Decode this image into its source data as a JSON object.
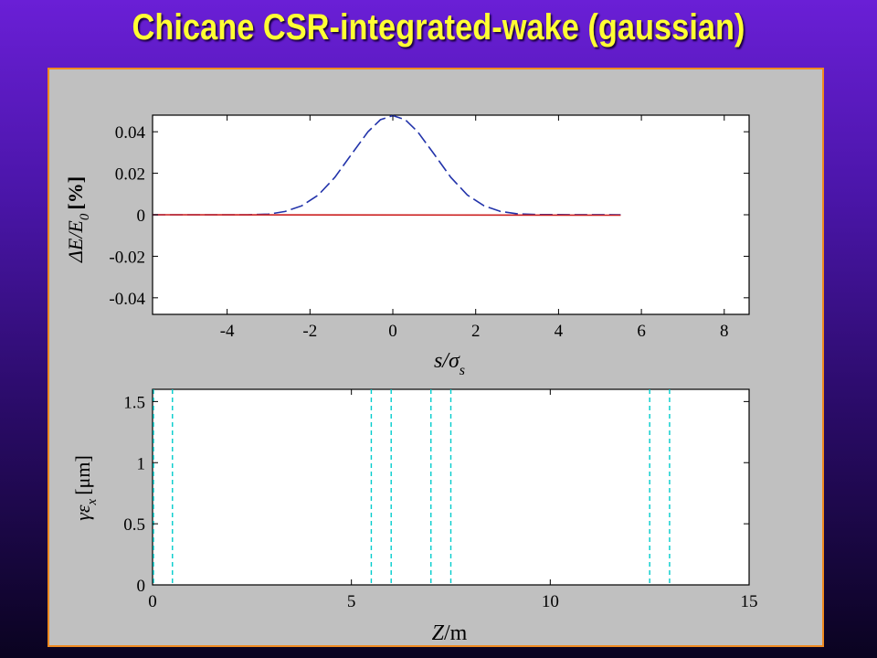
{
  "title": "Chicane CSR-integrated-wake (gaussian)",
  "chart_data": [
    {
      "type": "line",
      "xlabel_main": "s/σ",
      "xlabel_sub": "s",
      "ylabel": "ΔE/E",
      "ylabel_sub": "0",
      "ylabel_unit": "[%]",
      "xlim": [
        -5.8,
        8.6
      ],
      "ylim": [
        -0.048,
        0.048
      ],
      "xticks": [
        -4,
        -2,
        0,
        2,
        4,
        6,
        8
      ],
      "yticks": [
        0.04,
        0.02,
        0,
        -0.02,
        -0.04
      ],
      "ytick_labels": [
        "0.04",
        "0.02",
        "0",
        "-0.02",
        "-0.04"
      ],
      "series": [
        {
          "color": "#2233aa",
          "style": "dashed",
          "x": [
            -5.8,
            -3.5,
            -3.0,
            -2.6,
            -2.2,
            -1.8,
            -1.4,
            -1.0,
            -0.6,
            -0.3,
            0.0,
            0.3,
            0.6,
            1.0,
            1.4,
            1.8,
            2.2,
            2.6,
            3.0,
            3.5,
            5.5
          ],
          "y": [
            0.0,
            0.0,
            0.0003,
            0.0016,
            0.0043,
            0.0095,
            0.018,
            0.0291,
            0.04,
            0.0458,
            0.0478,
            0.0458,
            0.04,
            0.0291,
            0.018,
            0.0095,
            0.0043,
            0.0016,
            0.0005,
            0.0001,
            0.0
          ]
        },
        {
          "color": "#cc2222",
          "style": "solid",
          "x": [
            -5.8,
            5.5
          ],
          "y": [
            0.0,
            -0.0002
          ]
        }
      ]
    },
    {
      "type": "line",
      "xlabel_main": "Z",
      "xlabel_unit": "/m",
      "ylabel": "γε",
      "ylabel_sub": "x",
      "ylabel_unit": "[μm]",
      "xlim": [
        0,
        15
      ],
      "ylim": [
        0,
        1.6
      ],
      "xticks": [
        0,
        5,
        10,
        15
      ],
      "xtick_labels": [
        "0",
        "5",
        "10",
        "15"
      ],
      "yticks": [
        1.5,
        1,
        0.5,
        0
      ],
      "ytick_labels": [
        "1.5",
        "1",
        "0.5",
        "0"
      ],
      "vlines": {
        "color": "#00cccc",
        "style": "dashed",
        "x": [
          0,
          0.5,
          5.5,
          6.0,
          7.0,
          7.5,
          12.5,
          13.0
        ]
      }
    }
  ]
}
